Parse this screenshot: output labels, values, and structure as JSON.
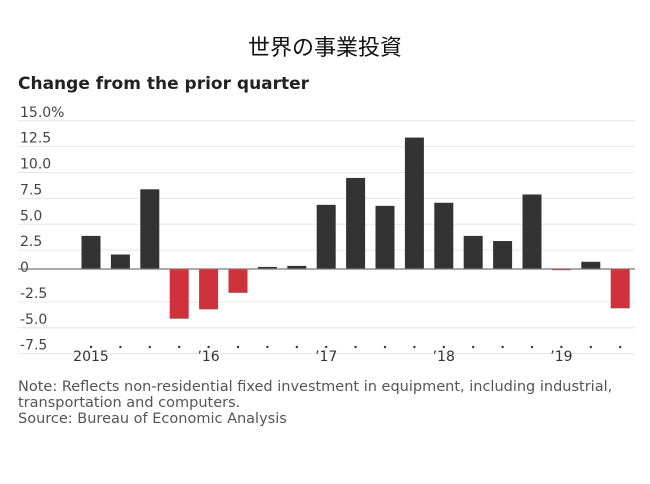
{
  "chart_data": {
    "type": "bar",
    "title": "世界の事業投資",
    "subtitle": "Change from the prior quarter",
    "xlabel": "",
    "ylabel": "",
    "ylim": [
      -7.5,
      15.0
    ],
    "yticks": [
      15.0,
      12.5,
      10.0,
      7.5,
      5.0,
      2.5,
      0,
      -2.5,
      -5.0,
      -7.5
    ],
    "ytick_labels": [
      "15.0%",
      "12.5",
      "10.0",
      "7.5",
      "5.0",
      "2.5",
      "0",
      "-2.5",
      "-5.0",
      "-7.5"
    ],
    "categories": [
      "2015 Q1",
      "2015 Q2",
      "2015 Q3",
      "2015 Q4",
      "2016 Q1",
      "2016 Q2",
      "2016 Q3",
      "2016 Q4",
      "2017 Q1",
      "2017 Q2",
      "2017 Q3",
      "2017 Q4",
      "2018 Q1",
      "2018 Q2",
      "2018 Q3",
      "2018 Q4",
      "2019 Q1",
      "2019 Q2",
      "2019 Q3"
    ],
    "values": [
      3.2,
      1.4,
      7.7,
      -4.8,
      -3.9,
      -2.3,
      0.2,
      0.3,
      6.2,
      8.8,
      6.1,
      12.7,
      6.4,
      3.2,
      2.7,
      7.2,
      -0.1,
      0.7,
      -3.8
    ],
    "xtick_labels": [
      {
        "index": 0,
        "label": "2015"
      },
      {
        "index": 4,
        "label": "’16"
      },
      {
        "index": 8,
        "label": "’17"
      },
      {
        "index": 12,
        "label": "’18"
      },
      {
        "index": 16,
        "label": "’19"
      }
    ],
    "grid": true,
    "colors": {
      "positive": "#333333",
      "negative": "#d0323b",
      "grid": "#e6e6e6",
      "axis": "#777777"
    }
  },
  "note": "Note: Reflects non-residential fixed investment in equipment, including industrial, transportation and computers.",
  "source": "Source: Bureau of Economic Analysis"
}
